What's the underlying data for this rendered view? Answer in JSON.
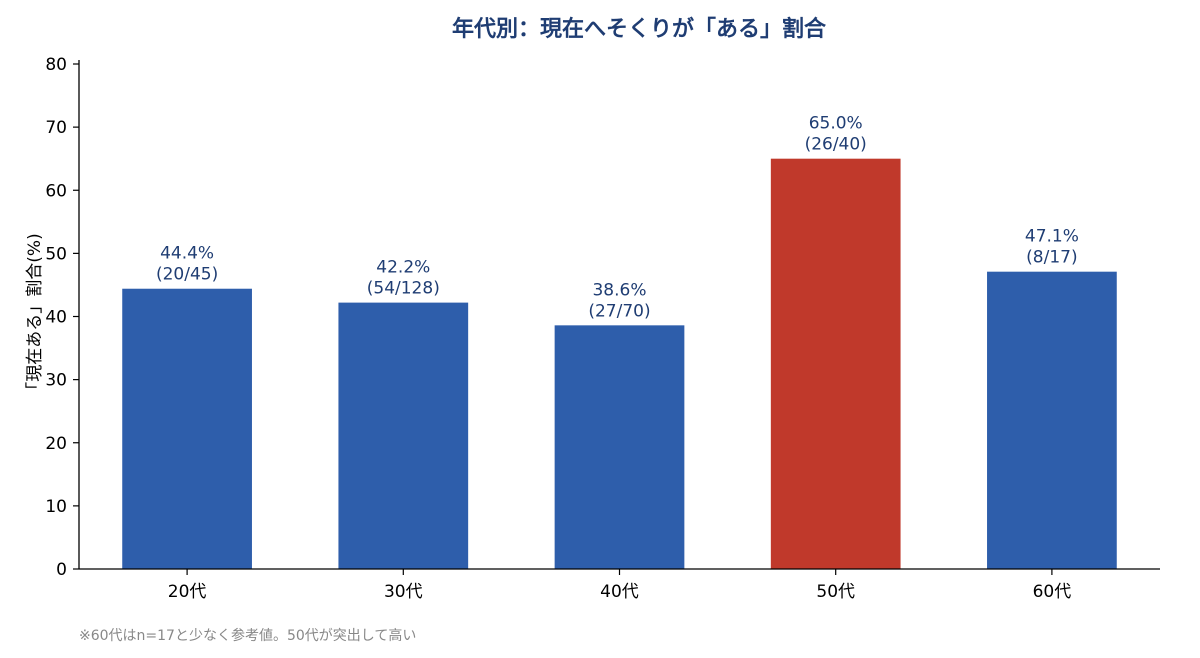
{
  "chart_data": {
    "type": "bar",
    "title": "年代別：現在へそくりが「ある」割合",
    "xlabel": "",
    "ylabel": "「現在ある」割合(%)",
    "categories": [
      "20代",
      "30代",
      "40代",
      "50代",
      "60代"
    ],
    "values": [
      44.4,
      42.2,
      38.6,
      65.0,
      47.1
    ],
    "value_labels": [
      "44.4%",
      "42.2%",
      "38.6%",
      "65.0%",
      "47.1%"
    ],
    "count_labels": [
      "(20/45)",
      "(54/128)",
      "(27/70)",
      "(26/40)",
      "(8/17)"
    ],
    "highlight_index": 3,
    "ylim": [
      0,
      80
    ],
    "yticks": [
      0,
      10,
      20,
      30,
      40,
      50,
      60,
      70,
      80
    ],
    "grid": false,
    "legend": "none"
  },
  "note": "※60代はn=17と少なく参考値。50代が突出して高い",
  "colors": {
    "bar": "#2e5eab",
    "highlight": "#c0392b",
    "title": "#1f3d73",
    "data_label": "#1f3d73",
    "axis": "#000000",
    "note": "#888888"
  }
}
